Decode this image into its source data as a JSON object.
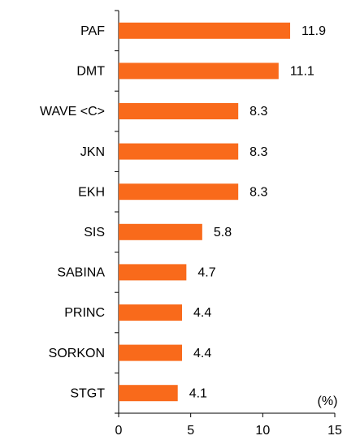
{
  "chart_data": {
    "type": "bar",
    "orientation": "horizontal",
    "categories": [
      "PAF",
      "DMT",
      "WAVE <C>",
      "JKN",
      "EKH",
      "SIS",
      "SABINA",
      "PRINC",
      "SORKON",
      "STGT"
    ],
    "values": [
      11.9,
      11.1,
      8.3,
      8.3,
      8.3,
      5.8,
      4.7,
      4.4,
      4.4,
      4.1
    ],
    "color": "#f96a1b",
    "xlim": [
      0,
      15
    ],
    "xticks": [
      0,
      5,
      10,
      15
    ],
    "unit_label": "(%)"
  }
}
